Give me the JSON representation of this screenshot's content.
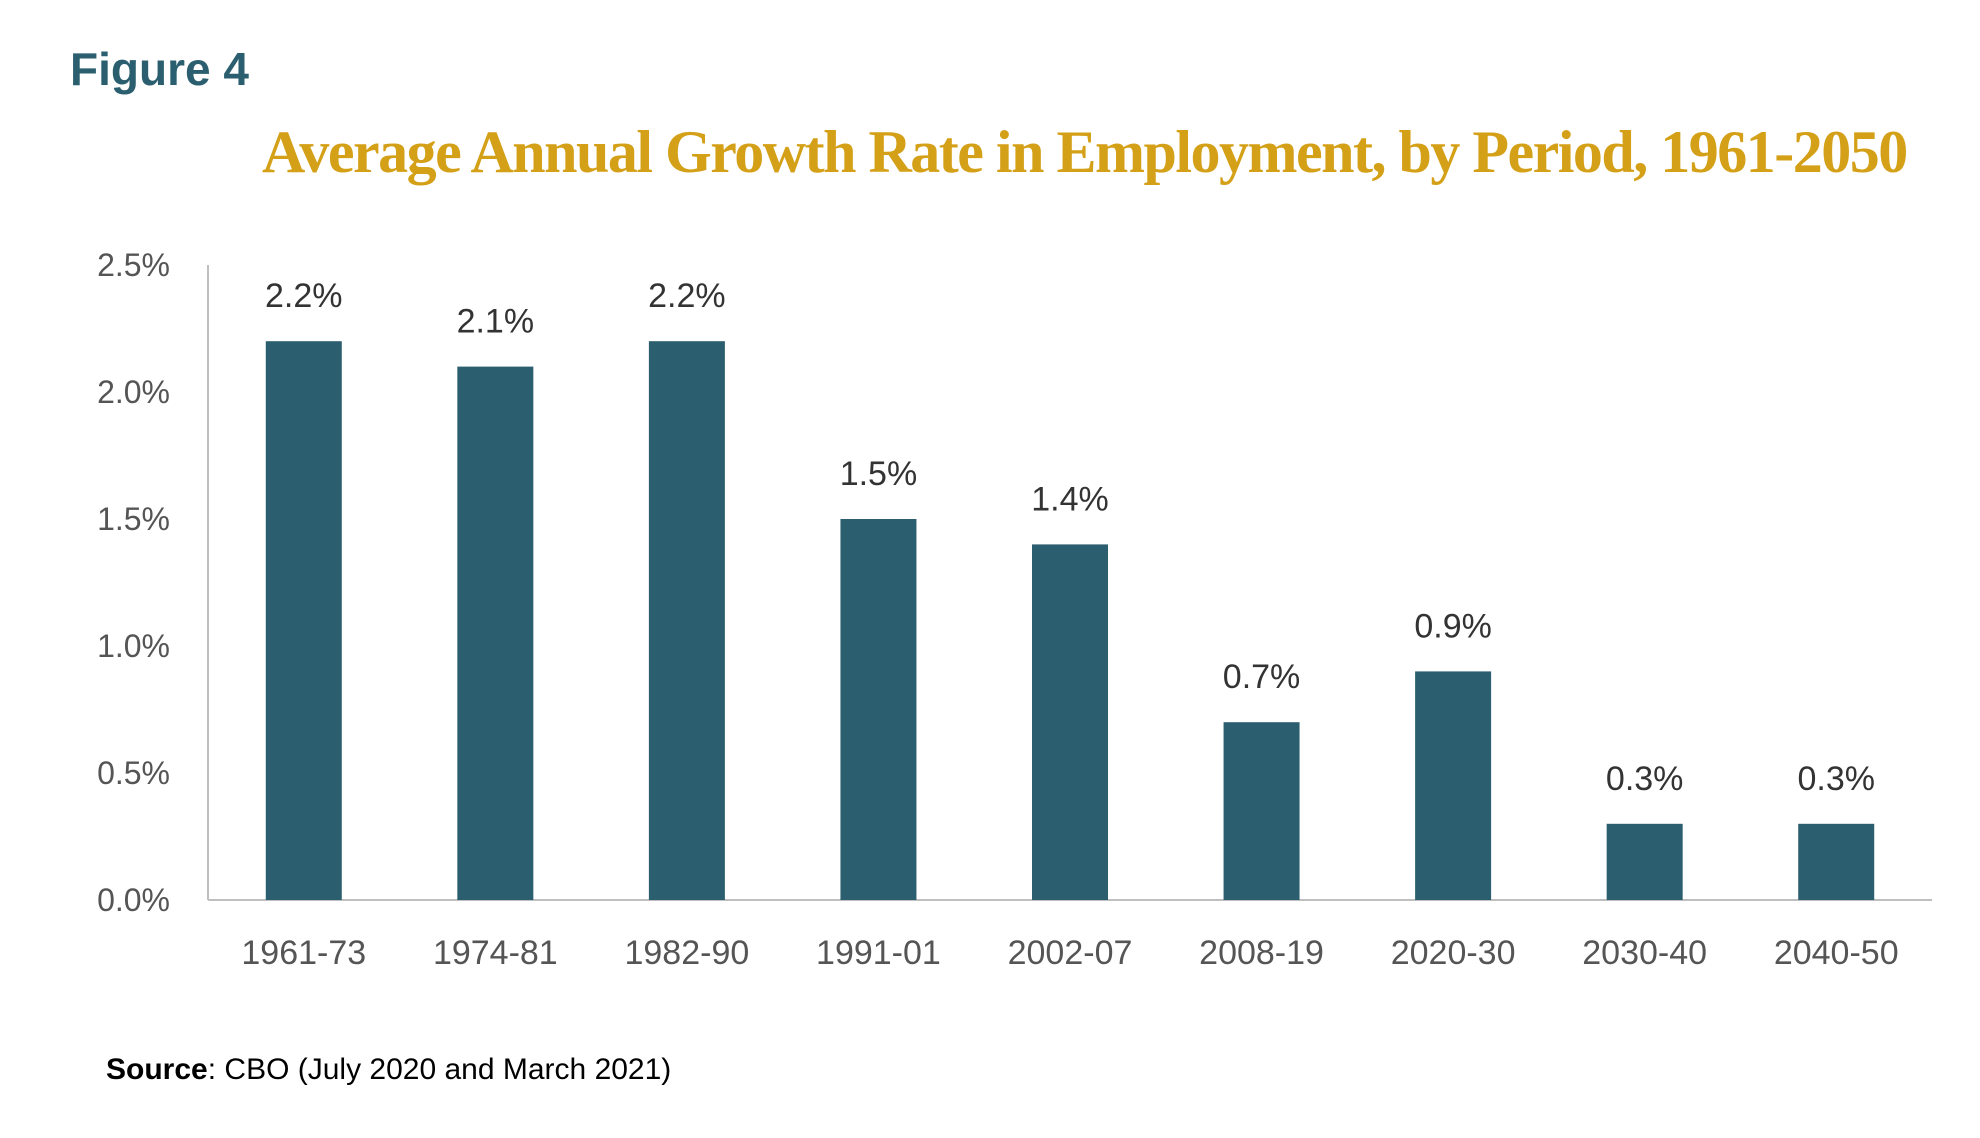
{
  "figure_label": "Figure 4",
  "source": {
    "label": "Source",
    "separator": ":",
    "text": " CBO (July 2020 and March 2021)"
  },
  "colors": {
    "bar": "#2b5f6f",
    "title": "#d4a017",
    "figure_label": "#2b5f6f"
  },
  "chart_data": {
    "type": "bar",
    "title": "Average Annual Growth Rate in Employment, by Period, 1961-2050",
    "xlabel": "",
    "ylabel": "",
    "categories": [
      "1961-73",
      "1974-81",
      "1982-90",
      "1991-01",
      "2002-07",
      "2008-19",
      "2020-30",
      "2030-40",
      "2040-50"
    ],
    "values": [
      2.2,
      2.1,
      2.2,
      1.5,
      1.4,
      0.7,
      0.9,
      0.3,
      0.3
    ],
    "data_labels": [
      "2.2%",
      "2.1%",
      "2.2%",
      "1.5%",
      "1.4%",
      "0.7%",
      "0.9%",
      "0.3%",
      "0.3%"
    ],
    "ylim": [
      0,
      2.5
    ],
    "yticks": [
      0,
      0.5,
      1.0,
      1.5,
      2.0,
      2.5
    ],
    "ytick_labels": [
      "0.0%",
      "0.5%",
      "1.0%",
      "1.5%",
      "2.0%",
      "2.5%"
    ],
    "grid": false,
    "legend": "none"
  }
}
